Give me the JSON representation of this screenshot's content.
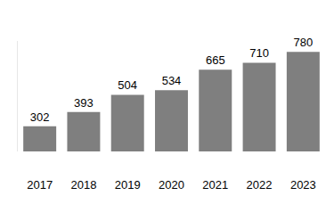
{
  "chart_data": {
    "type": "bar",
    "categories": [
      "2017",
      "2018",
      "2019",
      "2020",
      "2021",
      "2022",
      "2023"
    ],
    "values": [
      302,
      393,
      504,
      534,
      665,
      710,
      780
    ],
    "color": "#7f7f7f",
    "ylim": [
      140,
      850
    ],
    "yticks": [],
    "grid": false,
    "data_labels": true,
    "tick_labels": "x"
  }
}
